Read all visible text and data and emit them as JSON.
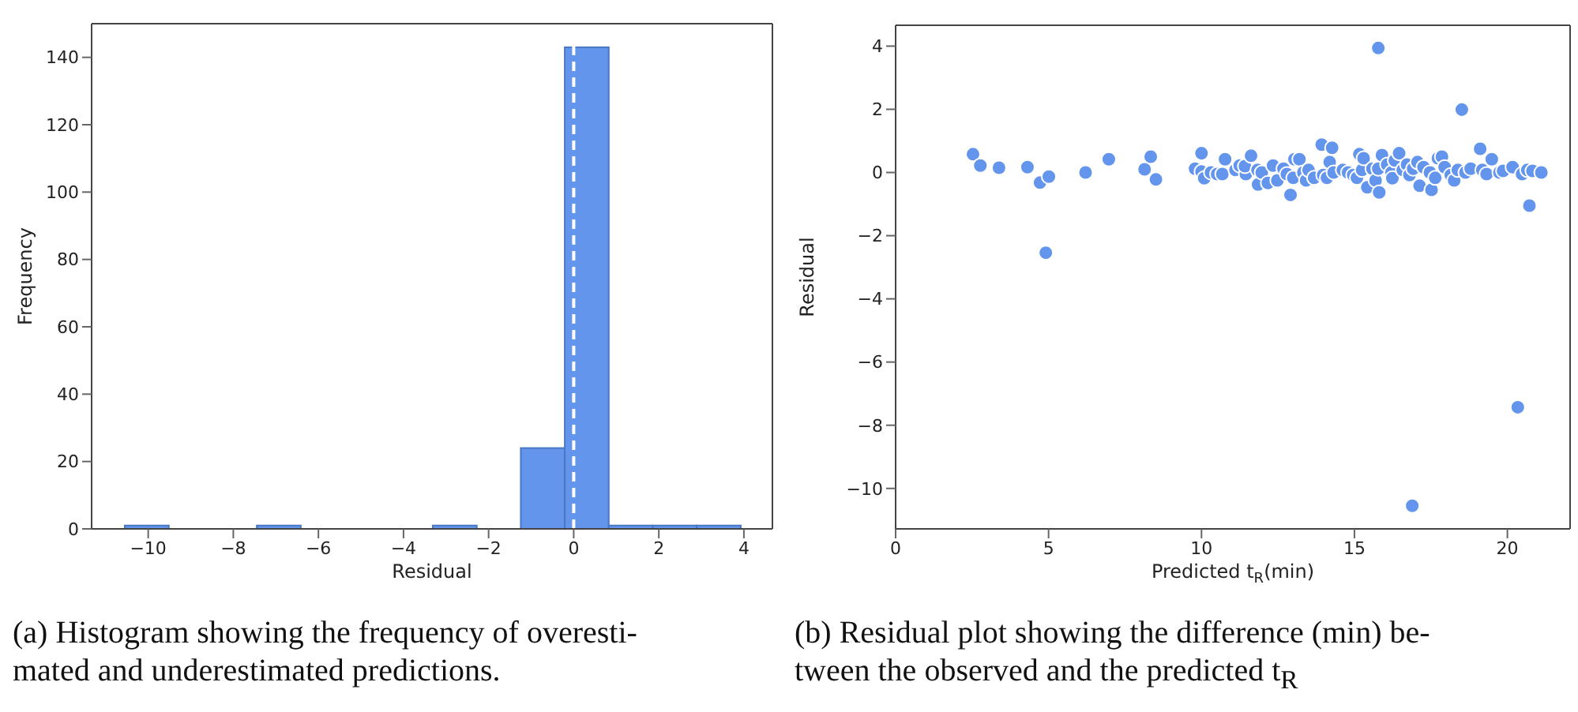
{
  "chart_data": [
    {
      "type": "histogram",
      "xlabel": "Residual",
      "ylabel": "Frequency",
      "color": "#6495ed",
      "bins": [
        -10.55,
        -9.516,
        -8.482,
        -7.448,
        -6.414,
        -5.38,
        -4.346,
        -3.312,
        -2.278,
        -1.244,
        -0.21,
        0.824,
        1.858,
        2.892,
        3.926
      ],
      "values": [
        1,
        0,
        0,
        1,
        0,
        0,
        0,
        1,
        0,
        24,
        143,
        1,
        1,
        1
      ],
      "xlim": [
        -11.33,
        4.67
      ],
      "xticks": [
        {
          "value": -10,
          "label": "−10"
        },
        {
          "value": -8,
          "label": "−8"
        },
        {
          "value": -6,
          "label": "−6"
        },
        {
          "value": -4,
          "label": "−4"
        },
        {
          "value": -2,
          "label": "−2"
        },
        0,
        2,
        4
      ],
      "ylim": [
        0,
        150
      ],
      "yticks": [
        0,
        20,
        40,
        60,
        80,
        100,
        120,
        140
      ],
      "ref_lines": [
        {
          "axis": "x",
          "value": 0,
          "color": "#ffffff",
          "line_style": "dashed"
        }
      ],
      "annotations": [
        "(a) Histogram showing the frequency of overesti-\nmated and underestimated predictions."
      ]
    },
    {
      "type": "scatter",
      "xlabel": "Predicted t$_{R}$(min)",
      "ylabel": "Residual",
      "color": "#6495ed",
      "marker": "circle",
      "x": [
        2.53,
        2.77,
        3.38,
        4.31,
        4.72,
        5.01,
        4.91,
        6.21,
        6.97,
        8.14,
        8.34,
        8.51,
        9.79,
        10.0,
        10.0,
        10.09,
        10.31,
        10.51,
        10.68,
        10.77,
        11.11,
        11.25,
        11.45,
        11.42,
        11.62,
        11.83,
        11.85,
        11.97,
        12.17,
        12.34,
        12.48,
        12.68,
        12.79,
        12.91,
        13.0,
        13.04,
        13.2,
        13.33,
        13.42,
        13.5,
        13.68,
        13.93,
        13.98,
        14.1,
        14.19,
        14.27,
        14.32,
        14.62,
        14.79,
        14.96,
        15.08,
        15.16,
        15.25,
        15.3,
        15.42,
        15.59,
        15.69,
        15.78,
        15.78,
        15.81,
        15.9,
        16.07,
        16.21,
        16.24,
        16.32,
        16.46,
        16.58,
        16.72,
        16.8,
        16.89,
        16.92,
        17.06,
        17.13,
        17.26,
        17.47,
        17.52,
        17.64,
        17.73,
        17.86,
        17.95,
        18.15,
        18.26,
        18.38,
        18.51,
        18.63,
        18.8,
        19.11,
        19.18,
        19.32,
        19.49,
        19.74,
        19.86,
        20.17,
        20.34,
        20.48,
        20.65,
        20.72,
        20.82,
        21.11
      ],
      "values": [
        0.58,
        0.22,
        0.15,
        0.17,
        -0.32,
        -0.13,
        -2.54,
        0,
        0.42,
        0.1,
        0.5,
        -0.22,
        0.12,
        0.61,
        0.03,
        -0.18,
        0,
        -0.05,
        -0.05,
        0.42,
        0.08,
        0.22,
        -0.05,
        0.2,
        0.53,
        0.08,
        -0.38,
        0,
        -0.33,
        0.22,
        -0.25,
        0.12,
        -0.05,
        -0.71,
        -0.17,
        0.42,
        0.42,
        0,
        -0.25,
        0.08,
        -0.17,
        0.88,
        -0.08,
        -0.17,
        0.33,
        0.78,
        0,
        0.08,
        0,
        -0.08,
        -0.17,
        0.58,
        0.08,
        0.45,
        -0.47,
        0.12,
        -0.25,
        3.94,
        0.12,
        -0.63,
        0.55,
        0.25,
        0,
        -0.18,
        0.38,
        0.61,
        0.08,
        0.25,
        -0.08,
        -10.55,
        0.12,
        0.33,
        -0.42,
        0.17,
        0,
        -0.55,
        -0.17,
        0.45,
        0.5,
        0.17,
        -0.08,
        -0.25,
        0.08,
        1.99,
        0,
        0.12,
        0.75,
        0.08,
        -0.05,
        0.42,
        0,
        0.05,
        0.17,
        -7.43,
        -0.05,
        0.08,
        -1.05,
        0.05,
        0
      ],
      "xlim": [
        0,
        22.05
      ],
      "xticks": [
        0,
        5,
        10,
        15,
        20
      ],
      "ylim": [
        -11.28,
        4.66
      ],
      "yticks": [
        {
          "value": -10,
          "label": "−10"
        },
        {
          "value": -8,
          "label": "−8"
        },
        {
          "value": -6,
          "label": "−6"
        },
        {
          "value": -4,
          "label": "−4"
        },
        {
          "value": -2,
          "label": "−2"
        },
        0,
        2,
        4
      ],
      "annotations": [
        "(b) Residual plot showing the difference (min) be-\ntween the observed and the predicted t$_{R}$"
      ]
    }
  ]
}
